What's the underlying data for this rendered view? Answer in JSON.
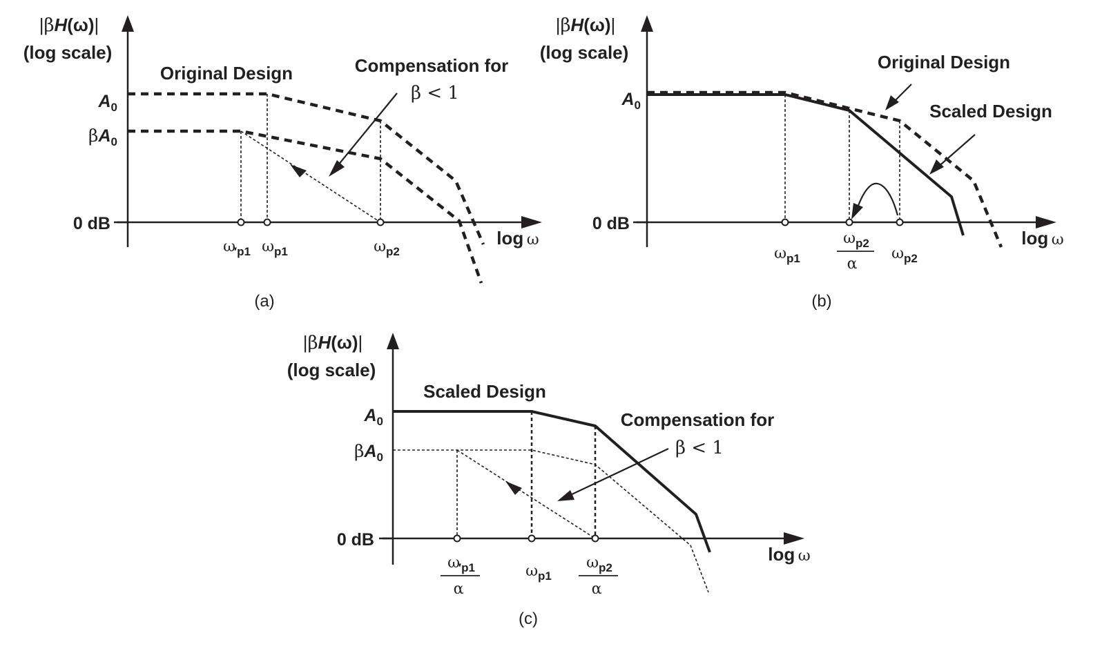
{
  "panels": {
    "a": {
      "ylabel_top": "|βH(ω)|",
      "ylabel_bottom": "(log scale)",
      "y_ticks": [
        "A0",
        "βA0",
        "0 dB"
      ],
      "x_axis_label": "log ω",
      "x_ticks": [
        "ω′p1",
        "ωp1",
        "ωp2"
      ],
      "annotations": [
        "Original Design",
        "Compensation for",
        "β < 1"
      ],
      "caption": "(a)"
    },
    "b": {
      "ylabel_top": "|βH(ω)|",
      "ylabel_bottom": "(log scale)",
      "y_ticks": [
        "A0",
        "0 dB"
      ],
      "x_axis_label": "log ω",
      "x_ticks": [
        "ωp1",
        "ωp2/α",
        "ωp2"
      ],
      "annotations": [
        "Original Design",
        "Scaled Design"
      ],
      "caption": "(b)"
    },
    "c": {
      "ylabel_top": "|βH(ω)|",
      "ylabel_bottom": "(log scale)",
      "y_ticks": [
        "A0",
        "βA0",
        "0 dB"
      ],
      "x_axis_label": "log ω",
      "x_ticks": [
        "ω′p1/α",
        "ωp1",
        "ωp2/α"
      ],
      "annotations": [
        "Scaled Design",
        "Compensation for",
        "β < 1"
      ],
      "caption": "(c)"
    }
  },
  "text": {
    "bar": "|",
    "beta": "β",
    "H": "H",
    "omega_paren": "(ω)",
    "log_scale": "(log scale)",
    "A": "A",
    "zero": "0",
    "zero_db": "0 dB",
    "omega": "ω",
    "alpha": "α",
    "prime": "′",
    "p1": "p1",
    "p2": "p2",
    "log": "log",
    "original_design": "Original Design",
    "scaled_design": "Scaled Design",
    "comp_for": "Compensation for",
    "beta_lt_1": "β < 1",
    "cap_a": "(a)",
    "cap_b": "(b)",
    "cap_c": "(c)"
  },
  "colors": {
    "ink": "#231f20",
    "background": "#ffffff"
  }
}
